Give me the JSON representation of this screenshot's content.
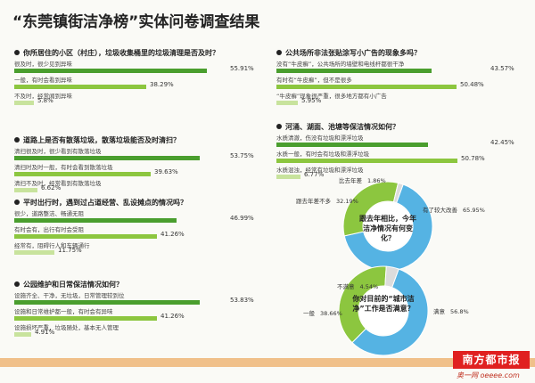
{
  "title": "“东莞镇街洁净榜”实体问卷调查结果",
  "colors": {
    "dark": "#4a9e2e",
    "mid": "#8cc63f",
    "light": "#c8e39d",
    "gray": "#dcdcdc",
    "blue": "#55b3e3",
    "pale": "#d9eef8"
  },
  "chart_data": [
    {
      "type": "bar",
      "question": "你所居住的小区（村庄），垃圾收集桶里的垃圾清理是否及时？",
      "categories": [
        "很及时，很少见到异味",
        "一般，有时会看到异味",
        "不及时，经常闻到异味"
      ],
      "values": [
        55.91,
        38.29,
        5.8
      ],
      "labels": [
        "55.91%",
        "38.29%",
        "5.8%"
      ]
    },
    {
      "type": "bar",
      "question": "道路上是否有散落垃圾，散落垃圾能否及时清扫？",
      "categories": [
        "清扫很及时，很少看到有散落垃圾",
        "清扫时及时一般，有时会看到散落垃圾",
        "清扫不及时，经常看到有散落垃圾"
      ],
      "values": [
        53.75,
        39.63,
        6.62
      ],
      "labels": [
        "53.75%",
        "39.63%",
        "6.62%"
      ]
    },
    {
      "type": "bar",
      "question": "平时出行时，遇到过占道经营、乱设摊点的情况吗？",
      "categories": [
        "很少，道路整洁、畅通无阻",
        "有时会有，出行有时会受阻",
        "经常有，阻碍行人和车辆通行"
      ],
      "values": [
        46.99,
        41.26,
        11.75
      ],
      "labels": [
        "46.99%",
        "41.26%",
        "11.75%"
      ]
    },
    {
      "type": "bar",
      "question": "公园维护和日常保洁情况如何？",
      "categories": [
        "设施齐全、干净，无垃圾，日常管理较到位",
        "设施和日常维护都一般，有时会有异味",
        "设施损坏严重，垃圾随处，基本无人管理"
      ],
      "values": [
        53.83,
        41.26,
        4.91
      ],
      "labels": [
        "53.83%",
        "41.26%",
        "4.91%"
      ]
    },
    {
      "type": "bar",
      "question": "公共场所非法张贴涂写小广告的现象多吗？",
      "categories": [
        "没有“牛皮癣”，公共场所的墙壁和电线杆都很干净",
        "有时有“牛皮癣”，但不是很多",
        "“牛皮癣”现象很严重，很多地方都有小广告"
      ],
      "values": [
        43.57,
        50.48,
        5.95
      ],
      "labels": [
        "43.57%",
        "50.48%",
        "5.95%"
      ]
    },
    {
      "type": "bar",
      "question": "河涌、湖面、池塘等保洁情况如何？",
      "categories": [
        "水质清澈，伤没有垃圾和漂浮垃圾",
        "水质一般，有时会有垃圾和漂浮垃圾",
        "水质混浊，经常有垃圾和漂浮垃圾"
      ],
      "values": [
        42.45,
        50.78,
        6.77
      ],
      "labels": [
        "42.45%",
        "50.78%",
        "6.77%"
      ]
    },
    {
      "type": "pie",
      "question": "跟去年相比，今年洁净情况有何变化？",
      "categories": [
        "有了较大改善",
        "跟去年差不多",
        "比去年差"
      ],
      "values": [
        65.95,
        32.19,
        1.86
      ],
      "labels": [
        "65.95%",
        "32.19%",
        "1.86%"
      ]
    },
    {
      "type": "pie",
      "question": "你对目前的“城市洁净”工作是否满意？",
      "categories": [
        "满意",
        "一般",
        "不满意"
      ],
      "values": [
        56.8,
        38.66,
        4.54
      ],
      "labels": [
        "56.8%",
        "38.66%",
        "4.54%"
      ]
    }
  ],
  "logo_text": "南方都市报",
  "site_text": "奥一网 oeeee.com"
}
